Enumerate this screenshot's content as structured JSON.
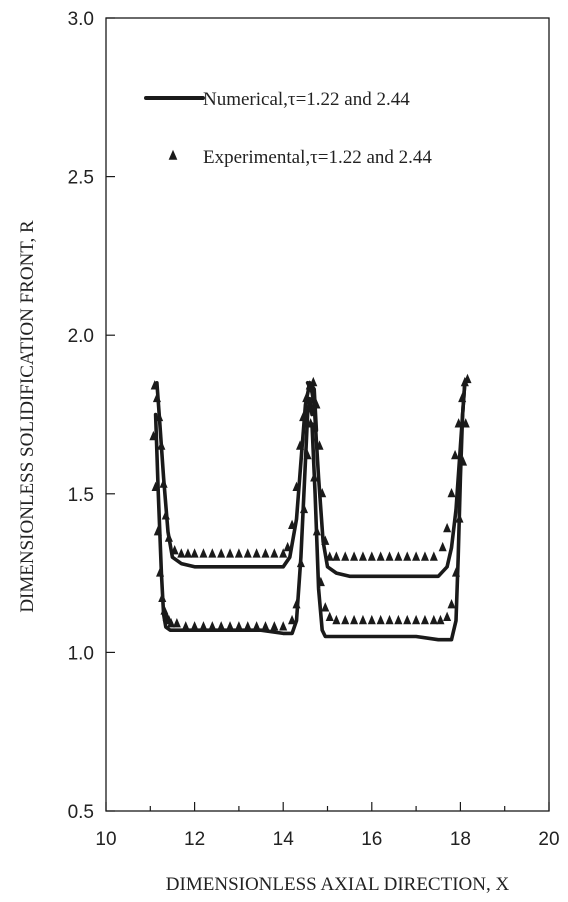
{
  "chart_data": {
    "type": "line",
    "title": "",
    "xlabel": "DIMENSIONLESS AXIAL DIRECTION, X",
    "ylabel": "DIMENSIONLESS SOLIDIFICATION FRONT, R",
    "xlim": [
      10,
      20
    ],
    "ylim": [
      0.5,
      3.0
    ],
    "xticks": [
      "10",
      "12",
      "14",
      "16",
      "18",
      "20"
    ],
    "yticks": [
      "0.5",
      "1.0",
      "1.5",
      "2.0",
      "2.5",
      "3.0"
    ],
    "grid": false,
    "legend_position": "top-left",
    "colors": {
      "line": "#1a1a1a",
      "marker": "#1a1a1a"
    },
    "legend": [
      {
        "label": "Numerical,τ=1.22 and 2.44",
        "marker": "line"
      },
      {
        "label": "Experimental,τ=1.22 and 2.44",
        "marker": "triangle"
      }
    ],
    "series": [
      {
        "marker": "line",
        "x": [
          11.12,
          11.18,
          11.25,
          11.3,
          11.35,
          11.45,
          11.6,
          12.0,
          12.5,
          13.0,
          13.5,
          14.0,
          14.2,
          14.3,
          14.4,
          14.5,
          14.55,
          14.6,
          14.65
        ],
        "y": [
          1.75,
          1.5,
          1.25,
          1.12,
          1.08,
          1.07,
          1.07,
          1.07,
          1.07,
          1.07,
          1.07,
          1.06,
          1.06,
          1.1,
          1.3,
          1.6,
          1.75,
          1.8,
          1.75
        ]
      },
      {
        "marker": "line",
        "x": [
          11.15,
          11.2,
          11.3,
          11.4,
          11.5,
          11.7,
          12.0,
          12.5,
          13.0,
          13.5,
          14.0,
          14.15,
          14.3,
          14.4,
          14.5,
          14.6,
          14.7,
          14.75
        ],
        "y": [
          1.85,
          1.75,
          1.55,
          1.38,
          1.3,
          1.28,
          1.27,
          1.27,
          1.27,
          1.27,
          1.27,
          1.3,
          1.42,
          1.6,
          1.78,
          1.85,
          1.83,
          1.7
        ]
      },
      {
        "marker": "line",
        "x": [
          14.65,
          14.72,
          14.8,
          14.88,
          14.95,
          15.1,
          15.5,
          16.0,
          16.5,
          17.0,
          17.5,
          17.8,
          17.9,
          17.95,
          18.0,
          18.05,
          18.1
        ],
        "y": [
          1.72,
          1.5,
          1.2,
          1.07,
          1.05,
          1.05,
          1.05,
          1.05,
          1.05,
          1.05,
          1.04,
          1.04,
          1.1,
          1.3,
          1.55,
          1.75,
          1.85
        ]
      },
      {
        "marker": "line",
        "x": [
          14.55,
          14.65,
          14.7,
          14.8,
          14.9,
          15.0,
          15.2,
          15.5,
          16.0,
          16.5,
          17.0,
          17.3,
          17.5,
          17.7,
          17.8,
          17.9,
          18.0,
          18.1
        ],
        "y": [
          1.85,
          1.82,
          1.78,
          1.55,
          1.35,
          1.27,
          1.25,
          1.24,
          1.24,
          1.24,
          1.24,
          1.24,
          1.24,
          1.27,
          1.33,
          1.45,
          1.65,
          1.85
        ]
      },
      {
        "marker": "triangle",
        "x": [
          11.07,
          11.12,
          11.17,
          11.22,
          11.27,
          11.32,
          11.37,
          11.42,
          11.47,
          11.6,
          11.8,
          12.0,
          12.2,
          12.4,
          12.6,
          12.8,
          13.0,
          13.2,
          13.4,
          13.6,
          13.8,
          14.0,
          14.2,
          14.3,
          14.4,
          14.47,
          14.55,
          14.62
        ],
        "y": [
          1.68,
          1.52,
          1.38,
          1.25,
          1.17,
          1.13,
          1.11,
          1.1,
          1.09,
          1.09,
          1.08,
          1.08,
          1.08,
          1.08,
          1.08,
          1.08,
          1.08,
          1.08,
          1.08,
          1.08,
          1.08,
          1.08,
          1.1,
          1.15,
          1.28,
          1.45,
          1.62,
          1.72
        ]
      },
      {
        "marker": "triangle",
        "x": [
          11.1,
          11.15,
          11.2,
          11.25,
          11.3,
          11.35,
          11.42,
          11.55,
          11.7,
          11.85,
          12.0,
          12.2,
          12.4,
          12.6,
          12.8,
          13.0,
          13.2,
          13.4,
          13.6,
          13.8,
          14.0,
          14.1,
          14.2,
          14.3,
          14.38,
          14.45,
          14.52,
          14.6,
          14.68
        ],
        "y": [
          1.84,
          1.8,
          1.74,
          1.65,
          1.53,
          1.43,
          1.36,
          1.32,
          1.31,
          1.31,
          1.31,
          1.31,
          1.31,
          1.31,
          1.31,
          1.31,
          1.31,
          1.31,
          1.31,
          1.31,
          1.31,
          1.33,
          1.4,
          1.52,
          1.65,
          1.74,
          1.8,
          1.84,
          1.85
        ]
      },
      {
        "marker": "triangle",
        "x": [
          14.75,
          14.82,
          14.88,
          14.95,
          15.05,
          15.2,
          15.4,
          15.6,
          15.8,
          16.0,
          16.2,
          16.4,
          16.6,
          16.8,
          17.0,
          17.2,
          17.4,
          17.6,
          17.7,
          17.8,
          17.88,
          17.96,
          18.04,
          18.1,
          18.16
        ],
        "y": [
          1.78,
          1.65,
          1.5,
          1.35,
          1.3,
          1.3,
          1.3,
          1.3,
          1.3,
          1.3,
          1.3,
          1.3,
          1.3,
          1.3,
          1.3,
          1.3,
          1.3,
          1.33,
          1.39,
          1.5,
          1.62,
          1.72,
          1.8,
          1.85,
          1.86
        ]
      },
      {
        "marker": "triangle",
        "x": [
          14.7,
          14.76,
          14.85,
          14.95,
          15.05,
          15.2,
          15.4,
          15.6,
          15.8,
          16.0,
          16.2,
          16.4,
          16.6,
          16.8,
          17.0,
          17.2,
          17.4,
          17.55,
          17.7,
          17.8,
          17.9,
          17.98,
          18.06,
          18.12
        ],
        "y": [
          1.55,
          1.38,
          1.22,
          1.14,
          1.11,
          1.1,
          1.1,
          1.1,
          1.1,
          1.1,
          1.1,
          1.1,
          1.1,
          1.1,
          1.1,
          1.1,
          1.1,
          1.1,
          1.11,
          1.15,
          1.25,
          1.42,
          1.6,
          1.72
        ]
      }
    ]
  }
}
